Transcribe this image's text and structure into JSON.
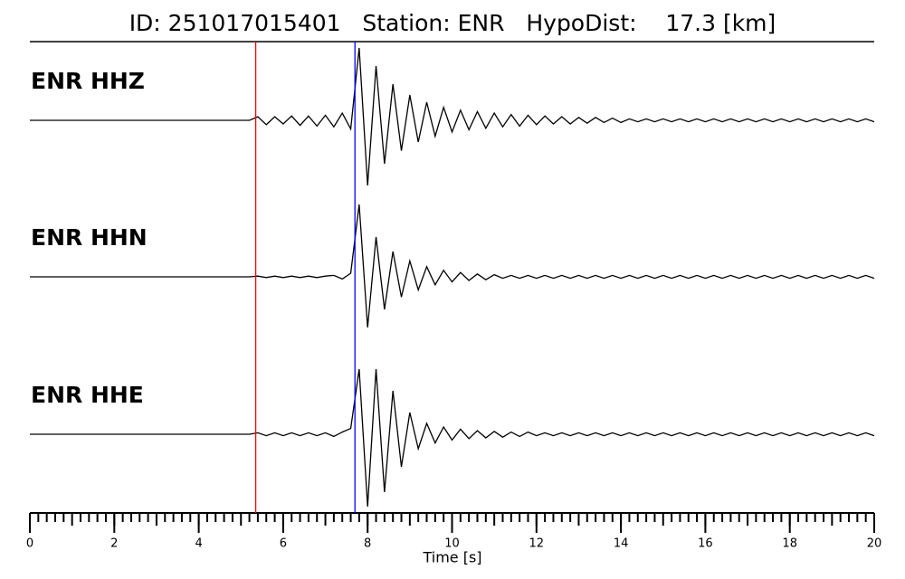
{
  "chart_data": {
    "type": "line",
    "title": "ID: 251017015401   Station: ENR   HypoDist:    17.3 [km]",
    "xlabel": "Time [s]",
    "xlim": [
      0,
      20
    ],
    "xticks": [
      0,
      2,
      4,
      6,
      8,
      10,
      12,
      14,
      16,
      18,
      20
    ],
    "minor_tick_step": 0.2,
    "label_color": "#4e9a06",
    "markers": [
      {
        "x": 5.35,
        "color": "#ff0000"
      },
      {
        "x": 7.7,
        "color": "#0000ff"
      }
    ],
    "x": [
      0,
      0.2,
      0.4,
      0.6,
      0.8,
      1,
      1.2,
      1.4,
      1.6,
      1.8,
      2,
      2.2,
      2.4,
      2.6,
      2.8,
      3,
      3.2,
      3.4,
      3.6,
      3.8,
      4,
      4.2,
      4.4,
      4.6,
      4.8,
      5,
      5.2,
      5.4,
      5.6,
      5.8,
      6,
      6.2,
      6.4,
      6.6,
      6.8,
      7,
      7.2,
      7.4,
      7.6,
      7.8,
      8,
      8.2,
      8.4,
      8.6,
      8.8,
      9,
      9.2,
      9.4,
      9.6,
      9.8,
      10,
      10.2,
      10.4,
      10.6,
      10.8,
      11,
      11.2,
      11.4,
      11.6,
      11.8,
      12,
      12.2,
      12.4,
      12.6,
      12.8,
      13,
      13.2,
      13.4,
      13.6,
      13.8,
      14,
      14.2,
      14.4,
      14.6,
      14.8,
      15,
      15.2,
      15.4,
      15.6,
      15.8,
      16,
      16.2,
      16.4,
      16.6,
      16.8,
      17,
      17.2,
      17.4,
      17.6,
      17.8,
      18,
      18.2,
      18.4,
      18.6,
      18.8,
      19,
      19.2,
      19.4,
      19.6,
      19.8,
      20
    ],
    "series": [
      {
        "name": "ENR HHZ",
        "color": "#000000",
        "values": [
          0,
          0,
          0,
          0,
          0,
          0,
          0,
          0,
          0,
          0,
          0,
          0,
          0,
          0,
          0,
          0,
          0,
          0,
          0,
          0,
          0,
          0,
          0,
          0,
          0,
          0,
          0,
          0.05,
          -0.06,
          0.05,
          -0.05,
          0.06,
          -0.07,
          0.06,
          -0.08,
          0.07,
          -0.09,
          0.1,
          -0.12,
          1.0,
          -0.9,
          0.75,
          -0.6,
          0.5,
          -0.42,
          0.35,
          -0.3,
          0.25,
          -0.22,
          0.18,
          -0.16,
          0.14,
          -0.13,
          0.12,
          -0.11,
          0.1,
          -0.09,
          0.08,
          -0.08,
          0.07,
          -0.06,
          0.06,
          -0.05,
          0.05,
          -0.05,
          0.04,
          -0.04,
          0.04,
          -0.03,
          0.03,
          -0.03,
          0.02,
          -0.02,
          0.02,
          -0.02,
          0.02,
          -0.02,
          0.02,
          -0.02,
          0.02,
          -0.02,
          0.02,
          -0.02,
          0.02,
          -0.02,
          0.02,
          -0.02,
          0.02,
          -0.02,
          0.02,
          -0.02,
          0.02,
          -0.02,
          0.02,
          -0.02,
          0.02,
          -0.02,
          0.02,
          -0.02,
          0.02,
          -0.02
        ]
      },
      {
        "name": "ENR HHN",
        "color": "#000000",
        "values": [
          0,
          0,
          0,
          0,
          0,
          0,
          0,
          0,
          0,
          0,
          0,
          0,
          0,
          0,
          0,
          0,
          0,
          0,
          0,
          0,
          0,
          0,
          0,
          0,
          0,
          0,
          0,
          0.01,
          -0.01,
          0.01,
          -0.01,
          0.01,
          -0.01,
          0.01,
          -0.01,
          0.01,
          0.02,
          -0.03,
          0.05,
          1.0,
          -0.7,
          0.55,
          -0.45,
          0.35,
          -0.28,
          0.22,
          -0.18,
          0.14,
          -0.11,
          0.09,
          -0.07,
          0.06,
          -0.05,
          0.04,
          -0.04,
          0.03,
          -0.02,
          0.02,
          -0.02,
          0.02,
          -0.02,
          0.02,
          -0.02,
          0.02,
          -0.02,
          0.02,
          -0.02,
          0.02,
          -0.02,
          0.02,
          -0.02,
          0.02,
          -0.02,
          0.02,
          -0.02,
          0.02,
          -0.02,
          0.02,
          -0.02,
          0.02,
          -0.02,
          0.02,
          -0.02,
          0.02,
          -0.02,
          0.02,
          -0.02,
          0.02,
          -0.02,
          0.02,
          -0.02,
          0.02,
          -0.02,
          0.02,
          -0.02,
          0.02,
          -0.02,
          0.02,
          -0.02,
          0.02,
          -0.02
        ]
      },
      {
        "name": "ENR HHE",
        "color": "#000000",
        "values": [
          0,
          0,
          0,
          0,
          0,
          0,
          0,
          0,
          0,
          0,
          0,
          0,
          0,
          0,
          0,
          0,
          0,
          0,
          0,
          0,
          0,
          0,
          0,
          0,
          0,
          0,
          0,
          0.02,
          -0.02,
          0.02,
          -0.02,
          0.02,
          -0.02,
          0.02,
          -0.02,
          0.02,
          -0.03,
          0.03,
          0.08,
          0.9,
          -1.0,
          0.9,
          -0.8,
          0.6,
          -0.45,
          0.3,
          -0.2,
          0.15,
          -0.12,
          0.1,
          -0.08,
          0.07,
          -0.06,
          0.05,
          -0.05,
          0.04,
          -0.04,
          0.03,
          -0.03,
          0.03,
          -0.02,
          0.02,
          -0.02,
          0.02,
          -0.02,
          0.02,
          -0.02,
          0.02,
          -0.02,
          0.02,
          -0.02,
          0.02,
          -0.02,
          0.02,
          -0.02,
          0.02,
          -0.02,
          0.02,
          -0.02,
          0.02,
          -0.02,
          0.02,
          -0.02,
          0.02,
          -0.02,
          0.02,
          -0.02,
          0.02,
          -0.02,
          0.02,
          -0.02,
          0.02,
          -0.02,
          0.02,
          -0.02,
          0.02,
          -0.02,
          0.02,
          -0.02,
          0.02,
          -0.02
        ]
      }
    ]
  }
}
